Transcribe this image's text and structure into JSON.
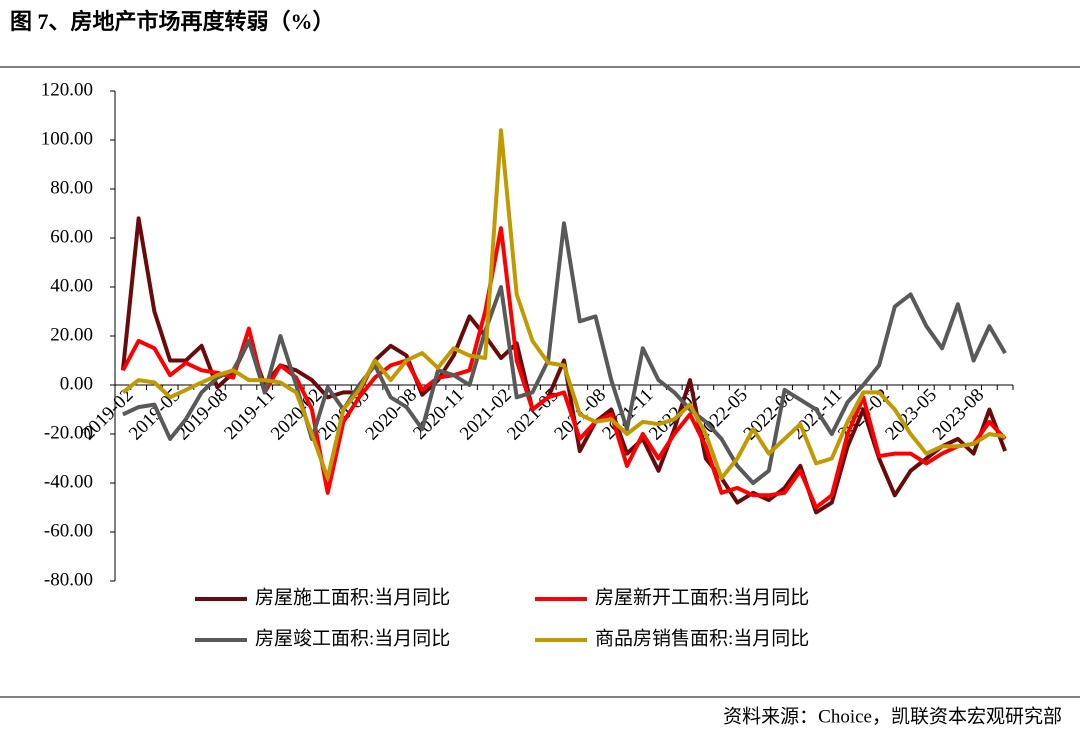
{
  "chart_data": {
    "type": "line",
    "title": "图 7、房地产市场再度转弱（%）",
    "source": "资料来源：Choice，凯联资本宏观研究部",
    "categories": [
      "2019-02",
      null,
      null,
      "2019-05",
      null,
      null,
      "2019-08",
      null,
      null,
      "2019-11",
      null,
      null,
      "2020-02",
      null,
      null,
      "2020-05",
      null,
      null,
      "2020-08",
      null,
      null,
      "2020-11",
      null,
      null,
      "2021-02",
      null,
      null,
      "2021-05",
      null,
      null,
      "2021-08",
      null,
      null,
      "2021-11",
      null,
      null,
      "2022-02",
      null,
      null,
      "2022-05",
      null,
      null,
      "2022-08",
      null,
      null,
      "2022-11",
      null,
      null,
      "2023-02",
      null,
      null,
      "2023-05",
      null,
      null,
      "2023-08",
      null,
      null
    ],
    "series": [
      {
        "name": "房屋施工面积:当月同比",
        "color": "#6b0a0a",
        "values": [
          6,
          68,
          30,
          10,
          10,
          16,
          -1,
          5,
          18,
          0,
          8,
          6,
          2,
          -5,
          -3,
          -3,
          10,
          16,
          12,
          -4,
          2,
          12,
          28,
          20,
          11,
          17,
          -10,
          -5,
          10,
          -27,
          -15,
          -10,
          -28,
          -22,
          -35,
          -18,
          2,
          -30,
          -38,
          -48,
          -44,
          -47,
          -42,
          -33,
          -52,
          -48,
          -25,
          -10,
          -30,
          -45,
          -35,
          -30,
          -25,
          -22,
          -28,
          -10,
          -27
        ]
      },
      {
        "name": "房屋新开工面积:当月同比",
        "color": "#ff0000",
        "values": [
          6,
          18,
          15,
          4,
          9,
          6,
          5,
          3,
          23,
          -3,
          8,
          3,
          -10,
          -44,
          -15,
          -5,
          3,
          8,
          10,
          -2,
          3,
          4,
          6,
          30,
          64,
          10,
          -10,
          -5,
          -3,
          -22,
          -15,
          -12,
          -33,
          -20,
          -30,
          -20,
          -12,
          -25,
          -44,
          -42,
          -45,
          -45,
          -44,
          -35,
          -50,
          -45,
          -20,
          -5,
          -29,
          -28,
          -28,
          -32,
          -28,
          -25,
          -24,
          -15,
          -22
        ]
      },
      {
        "name": "房屋竣工面积:当月同比",
        "color": "#595959",
        "values": [
          -12,
          -9,
          -8,
          -22,
          -14,
          -3,
          3,
          6,
          18,
          -3,
          20,
          0,
          -22,
          -1,
          -10,
          0,
          8,
          -5,
          -9,
          -18,
          6,
          4,
          0,
          22,
          40,
          -5,
          -3,
          10,
          66,
          26,
          28,
          2,
          -18,
          15,
          2,
          -3,
          -10,
          -15,
          -22,
          -33,
          -40,
          -35,
          -2,
          -6,
          -10,
          -20,
          -7,
          0,
          8,
          32,
          37,
          24,
          15,
          33,
          10,
          24,
          13
        ]
      },
      {
        "name": "商品房销售面积:当月同比",
        "color": "#c09a00",
        "values": [
          -3,
          2,
          1,
          -5,
          -2,
          1,
          4,
          6,
          2,
          2,
          1,
          -3,
          -20,
          -38,
          -10,
          -2,
          10,
          2,
          10,
          13,
          7,
          15,
          12,
          11,
          104,
          37,
          18,
          9,
          8,
          -12,
          -15,
          -14,
          -20,
          -15,
          -16,
          -14,
          -8,
          -20,
          -38,
          -30,
          -18,
          -28,
          -22,
          -16,
          -32,
          -30,
          -15,
          -3,
          -3,
          -10,
          -20,
          -28,
          -25,
          -25,
          -24,
          -20,
          -21
        ]
      }
    ],
    "ylim": [
      -80,
      120
    ],
    "yticks": [
      {
        "value": -80,
        "label": "-80.00"
      },
      {
        "value": -60,
        "label": "-60.00"
      },
      {
        "value": -40,
        "label": "-40.00"
      },
      {
        "value": -20,
        "label": "-20.00"
      },
      {
        "value": 0,
        "label": "0.00"
      },
      {
        "value": 20,
        "label": "20.00"
      },
      {
        "value": 40,
        "label": "40.00"
      },
      {
        "value": 60,
        "label": "60.00"
      },
      {
        "value": 80,
        "label": "80.00"
      },
      {
        "value": 100,
        "label": "100.00"
      },
      {
        "value": 120,
        "label": "120.00"
      }
    ],
    "grid": false,
    "legend": "bottom"
  }
}
